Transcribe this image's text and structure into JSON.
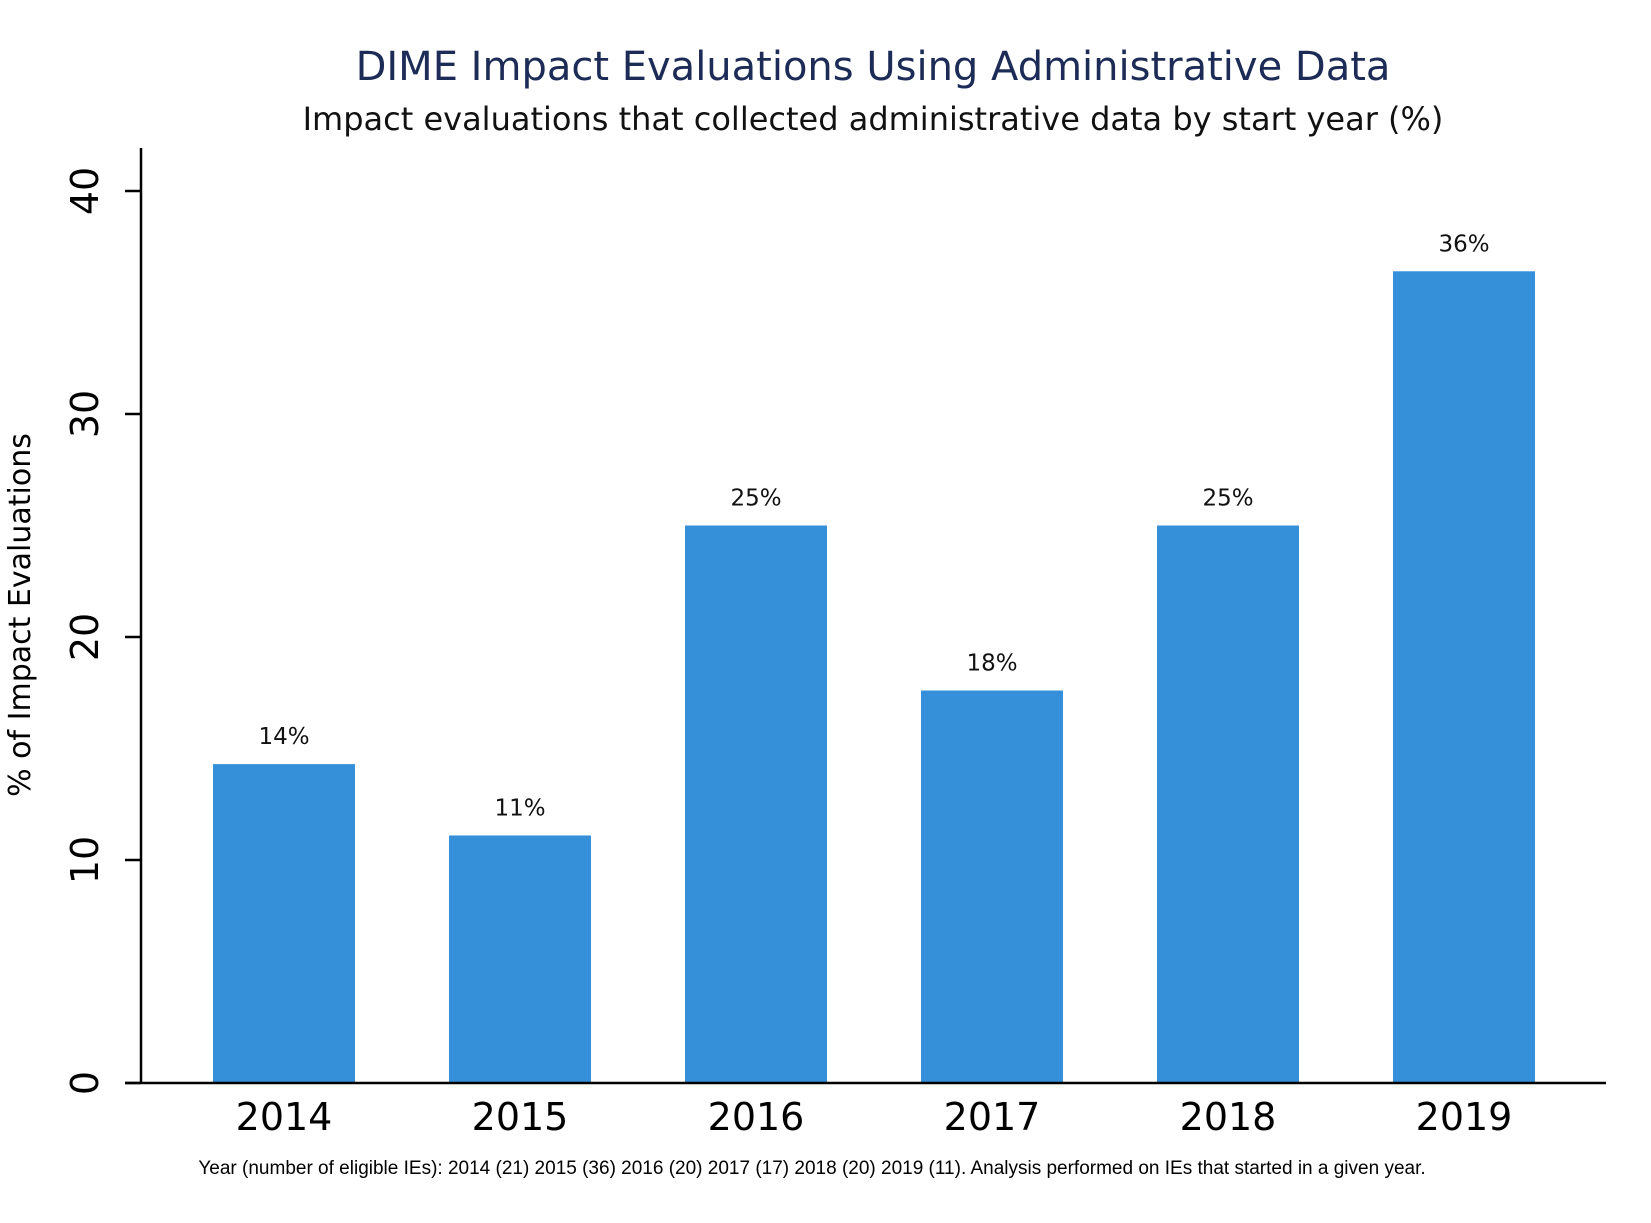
{
  "chart_data": {
    "type": "bar",
    "title": "DIME Impact Evaluations Using Administrative Data",
    "subtitle": "Impact evaluations that collected administrative data by start year (%)",
    "xlabel": "",
    "ylabel": "% of Impact Evaluations",
    "categories": [
      "2014",
      "2015",
      "2016",
      "2017",
      "2018",
      "2019"
    ],
    "values": [
      14.3,
      11.1,
      25.0,
      17.6,
      25.0,
      36.4
    ],
    "data_labels": [
      "14%",
      "11%",
      "25%",
      "18%",
      "25%",
      "36%"
    ],
    "ylim": [
      0,
      42
    ],
    "yticks": [
      0,
      10,
      20,
      30,
      40
    ],
    "ytick_labels": [
      "0",
      "10",
      "20",
      "30",
      "40"
    ],
    "grid": false,
    "bar_color": "#3590d9",
    "note": "Year (number of eligible IEs): 2014 (21) 2015 (36) 2016 (20) 2017 (17) 2018 (20) 2019 (11). Analysis performed on IEs that started in a given year."
  }
}
